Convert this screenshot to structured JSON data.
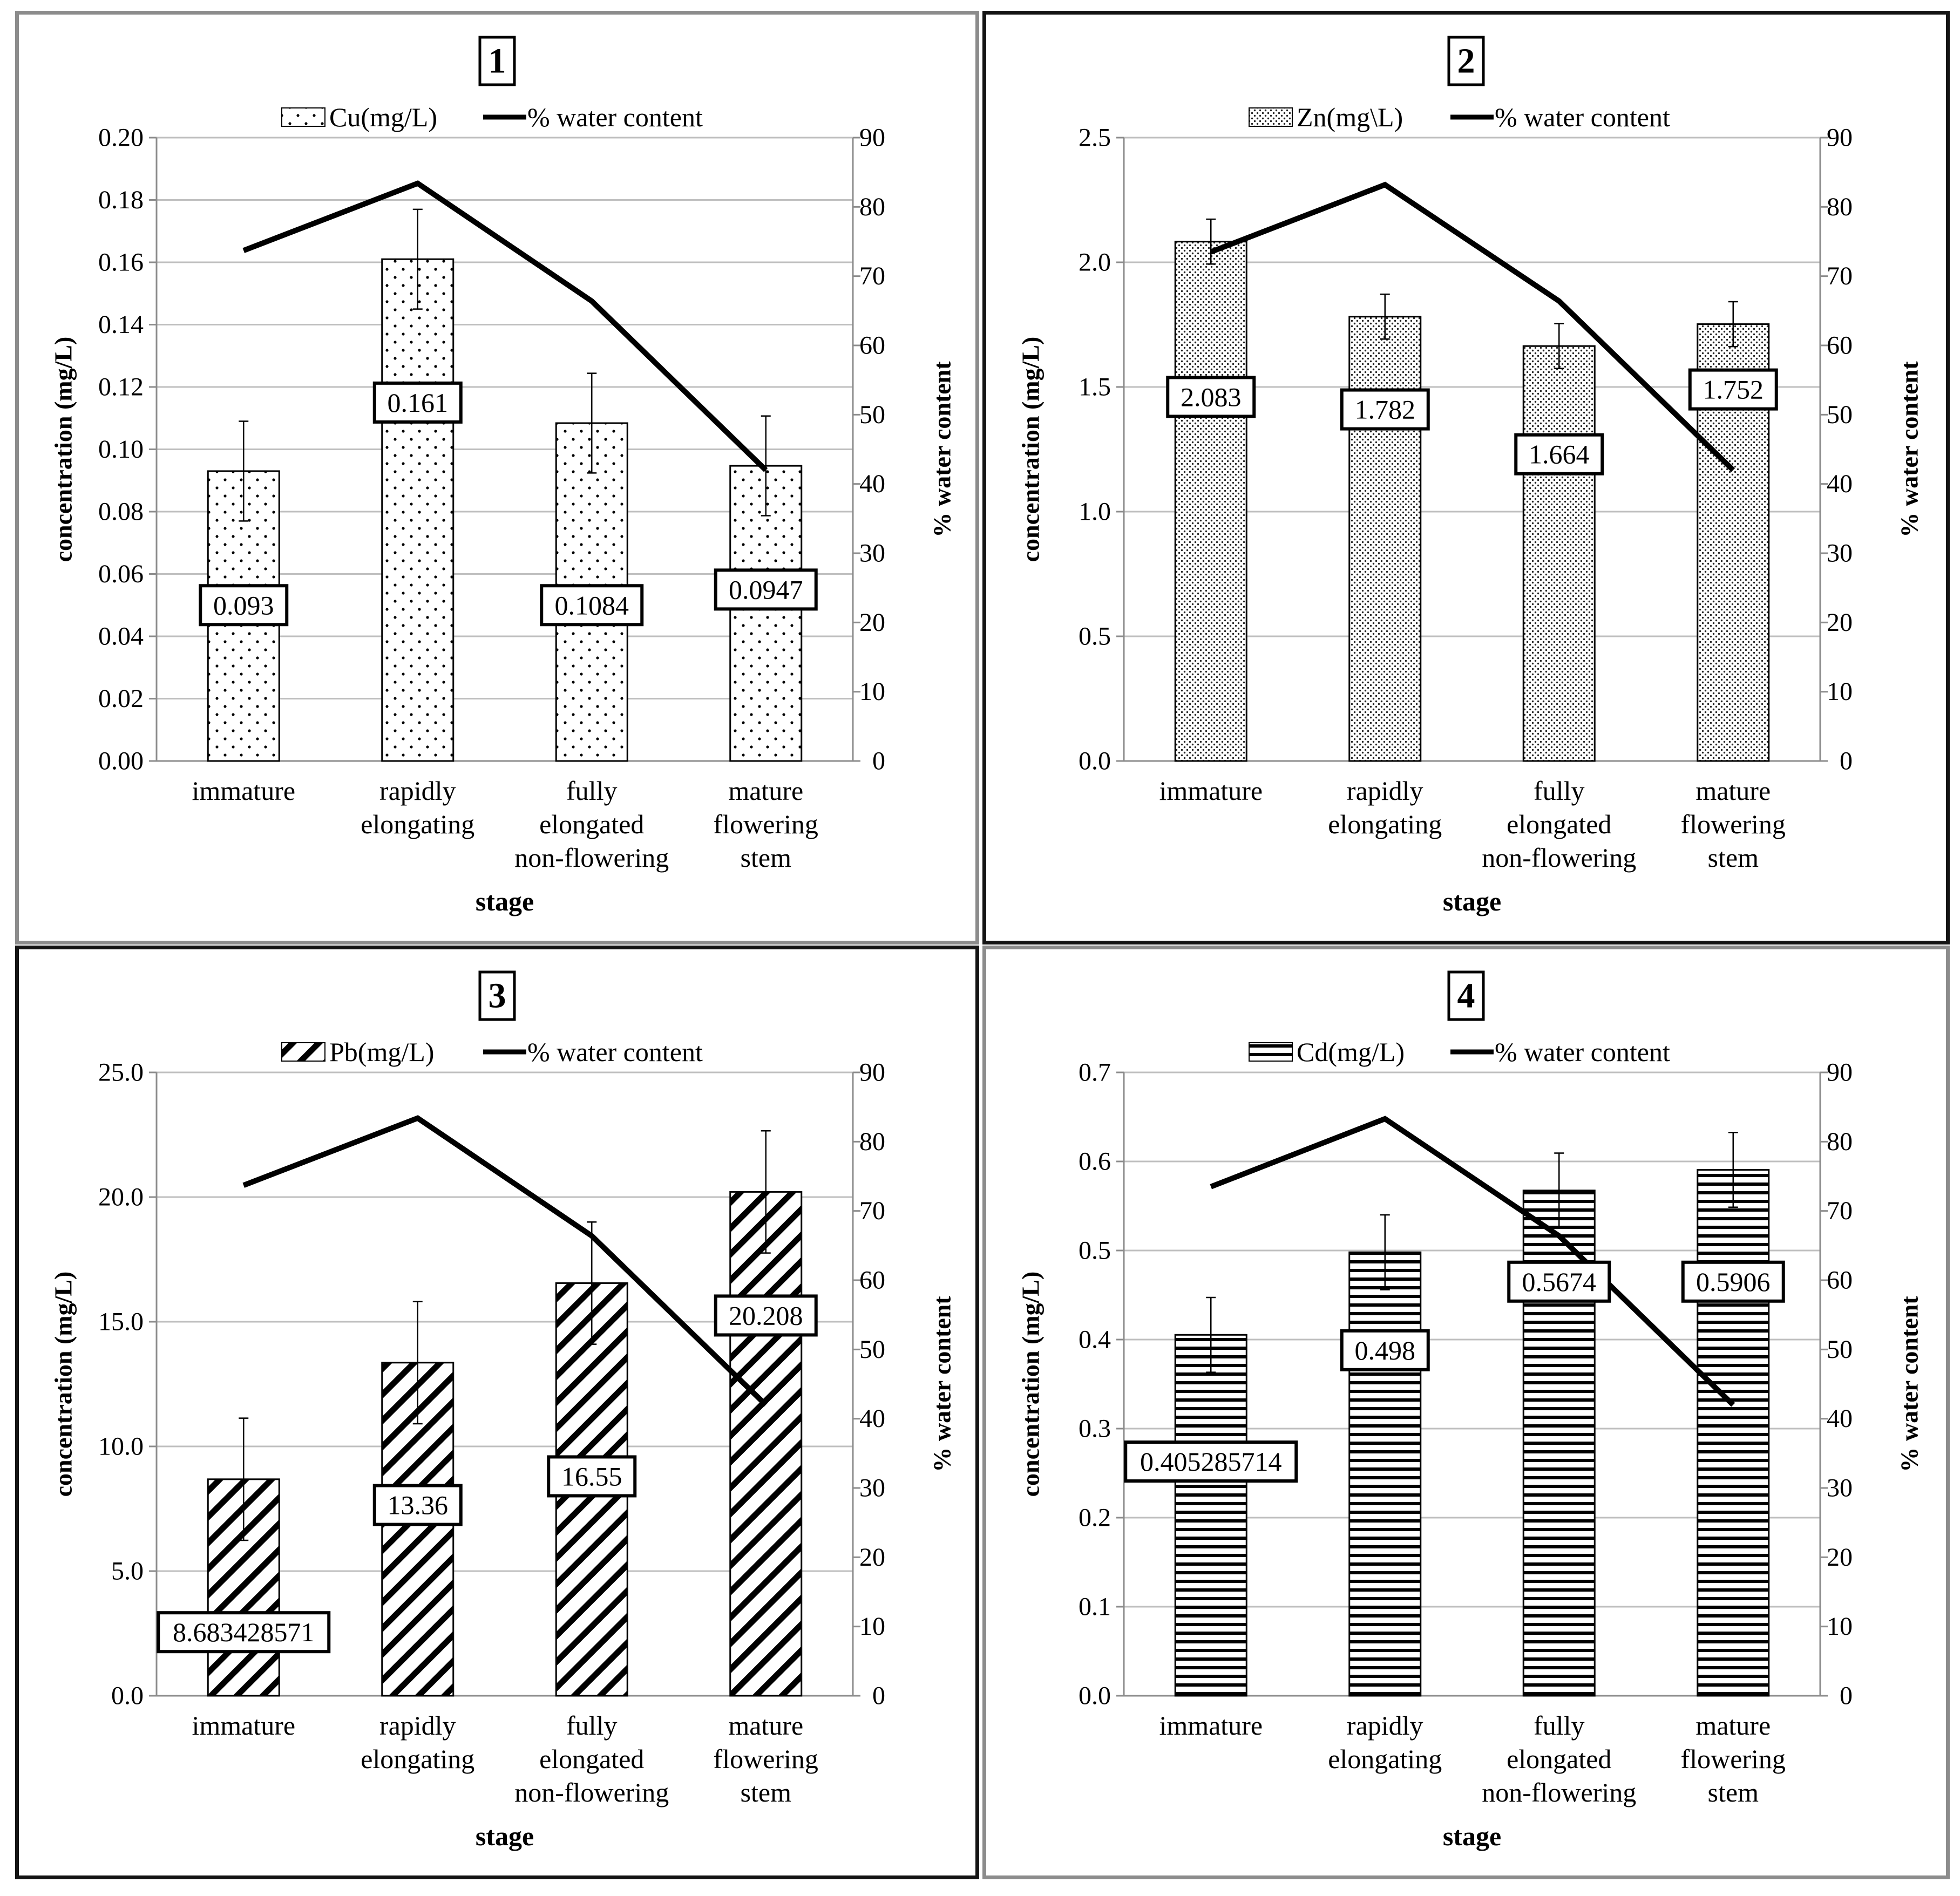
{
  "colors": {
    "frame_grey": "#8c8c8c",
    "frame_black": "#141414",
    "grid": "#bfbfbf",
    "ink": "#000000"
  },
  "chart_data": [
    {
      "type": "bar",
      "panel_number": "1",
      "title": "1",
      "categories": [
        [
          "immature"
        ],
        [
          "rapidly",
          "elongating"
        ],
        [
          "fully",
          "elongated",
          "non-flowering"
        ],
        [
          "mature",
          "flowering",
          "stem"
        ]
      ],
      "series": [
        {
          "name": "Cu(mg/L)",
          "type": "bar",
          "axis": "left",
          "pattern": "dots",
          "values": [
            0.093,
            0.161,
            0.1084,
            0.0947
          ],
          "error": [
            0.016,
            0.016,
            0.016,
            0.016
          ],
          "data_labels": [
            "0.093",
            "0.161",
            "0.1084",
            "0.0947"
          ],
          "label_at": [
            0.05,
            0.115,
            0.05,
            0.055
          ]
        },
        {
          "name": "% water content",
          "type": "line",
          "axis": "right",
          "values": [
            73.7,
            83.4,
            66.4,
            42.0
          ]
        }
      ],
      "legend": [
        "Cu(mg/L)",
        "% water content"
      ],
      "xlabel": "stage",
      "ylabel": "concentration (mg/L)",
      "y2label": "% water content",
      "ylim": [
        0,
        0.2
      ],
      "y_ticks": [
        "0.00",
        "0.02",
        "0.04",
        "0.06",
        "0.08",
        "0.10",
        "0.12",
        "0.14",
        "0.16",
        "0.18",
        "0.20"
      ],
      "y2lim": [
        0,
        90
      ],
      "y2_ticks": [
        "0",
        "10",
        "20",
        "30",
        "40",
        "50",
        "60",
        "70",
        "80",
        "90"
      ],
      "grid": true
    },
    {
      "type": "bar",
      "panel_number": "2",
      "title": "2",
      "categories": [
        [
          "immature"
        ],
        [
          "rapidly",
          "elongating"
        ],
        [
          "fully",
          "elongated",
          "non-flowering"
        ],
        [
          "mature",
          "flowering",
          "stem"
        ]
      ],
      "series": [
        {
          "name": "Zn(mg\\L)",
          "type": "bar",
          "axis": "left",
          "pattern": "fine-dots",
          "values": [
            2.083,
            1.782,
            1.664,
            1.752
          ],
          "error": [
            0.09,
            0.09,
            0.09,
            0.09
          ],
          "data_labels": [
            "2.083",
            "1.782",
            "1.664",
            "1.752"
          ],
          "label_at": [
            1.46,
            1.41,
            1.23,
            1.49
          ]
        },
        {
          "name": "% water content",
          "type": "line",
          "axis": "right",
          "values": [
            73.5,
            83.2,
            66.4,
            42.0
          ]
        }
      ],
      "legend": [
        "Zn(mg\\L)",
        "% water content"
      ],
      "xlabel": "stage",
      "ylabel": "concentration (mg/L)",
      "y2label": "% water content",
      "ylim": [
        0,
        2.5
      ],
      "y_ticks": [
        "0.0",
        "0.5",
        "1.0",
        "1.5",
        "2.0",
        "2.5"
      ],
      "y2lim": [
        0,
        90
      ],
      "y2_ticks": [
        "0",
        "10",
        "20",
        "30",
        "40",
        "50",
        "60",
        "70",
        "80",
        "90"
      ],
      "grid": true
    },
    {
      "type": "bar",
      "panel_number": "3",
      "title": "3",
      "categories": [
        [
          "immature"
        ],
        [
          "rapidly",
          "elongating"
        ],
        [
          "fully",
          "elongated",
          "non-flowering"
        ],
        [
          "mature",
          "flowering",
          "stem"
        ]
      ],
      "series": [
        {
          "name": "Pb(mg/L)",
          "type": "bar",
          "axis": "left",
          "pattern": "diagonal",
          "values": [
            8.683428571,
            13.36,
            16.55,
            20.208
          ],
          "error": [
            2.45,
            2.45,
            2.45,
            2.45
          ],
          "data_labels": [
            "8.683428571",
            "13.36",
            "16.55",
            "20.208"
          ],
          "label_at": [
            2.55,
            7.65,
            8.8,
            15.25
          ]
        },
        {
          "name": "% water content",
          "type": "line",
          "axis": "right",
          "values": [
            73.7,
            83.4,
            66.4,
            42.0
          ]
        }
      ],
      "legend": [
        "Pb(mg/L)",
        "% water content"
      ],
      "xlabel": "stage",
      "ylabel": "concentration (mg/L)",
      "y2label": "% water content",
      "ylim": [
        0,
        25
      ],
      "y_ticks": [
        "0.0",
        "5.0",
        "10.0",
        "15.0",
        "20.0",
        "25.0"
      ],
      "y2lim": [
        0,
        90
      ],
      "y2_ticks": [
        "0",
        "10",
        "20",
        "30",
        "40",
        "50",
        "60",
        "70",
        "80",
        "90"
      ],
      "grid": true
    },
    {
      "type": "bar",
      "panel_number": "4",
      "title": "4",
      "categories": [
        [
          "immature"
        ],
        [
          "rapidly",
          "elongating"
        ],
        [
          "fully",
          "elongated",
          "non-flowering"
        ],
        [
          "mature",
          "flowering",
          "stem"
        ]
      ],
      "series": [
        {
          "name": "Cd(mg/L)",
          "type": "bar",
          "axis": "left",
          "pattern": "horizontal",
          "values": [
            0.405285714,
            0.498,
            0.5674,
            0.5906
          ],
          "error": [
            0.042,
            0.042,
            0.042,
            0.042
          ],
          "data_labels": [
            "0.405285714",
            "0.498",
            "0.5674",
            "0.5906"
          ],
          "label_at": [
            0.263,
            0.388,
            0.465,
            0.465
          ]
        },
        {
          "name": "% water content",
          "type": "line",
          "axis": "right",
          "values": [
            73.5,
            83.3,
            66.4,
            42.0
          ]
        }
      ],
      "legend": [
        "Cd(mg/L)",
        "% water content"
      ],
      "xlabel": "stage",
      "ylabel": "concentration (mg/L)",
      "y2label": "% water content",
      "ylim": [
        0,
        0.7
      ],
      "y_ticks": [
        "0.0",
        "0.1",
        "0.2",
        "0.3",
        "0.4",
        "0.5",
        "0.6",
        "0.7"
      ],
      "y2lim": [
        0,
        90
      ],
      "y2_ticks": [
        "0",
        "10",
        "20",
        "30",
        "40",
        "50",
        "60",
        "70",
        "80",
        "90"
      ],
      "grid": true
    }
  ]
}
